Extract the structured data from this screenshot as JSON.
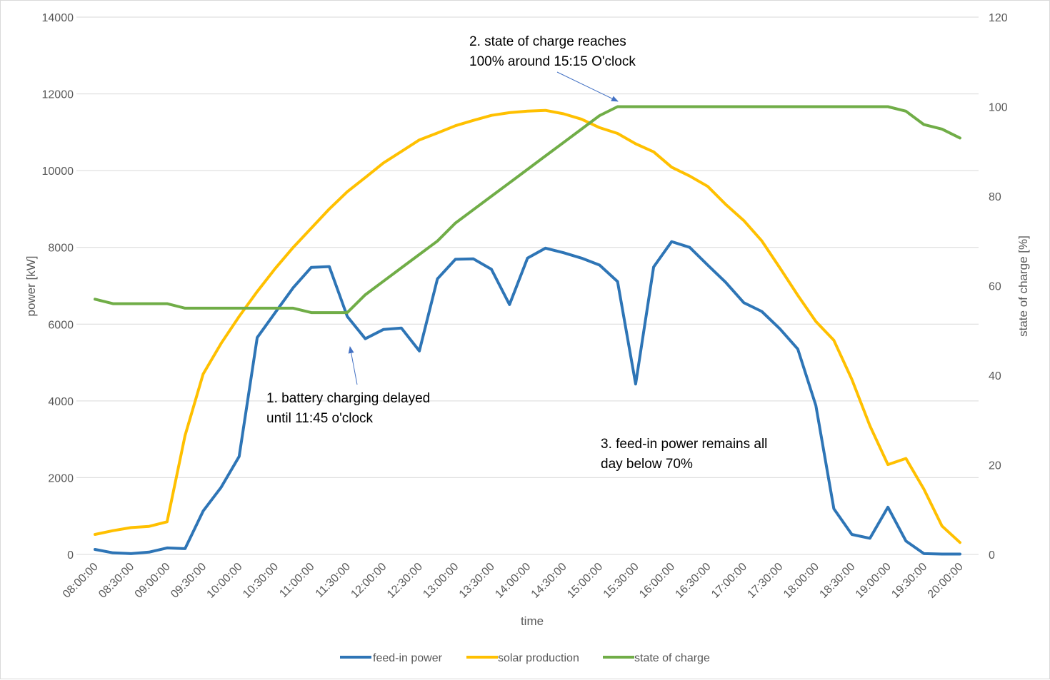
{
  "chart_data": {
    "type": "line",
    "title": "",
    "xlabel": "time",
    "ylabel": "power [kW]",
    "y2label": "state of charge [%]",
    "ylim": [
      0,
      14000
    ],
    "y_ticks": [
      0,
      2000,
      4000,
      6000,
      8000,
      10000,
      12000,
      14000
    ],
    "y2lim": [
      0,
      120
    ],
    "y2_ticks": [
      0,
      20,
      40,
      60,
      80,
      100,
      120
    ],
    "grid": true,
    "legend_position": "bottom",
    "x_tick_labels": [
      "08:00:00",
      "08:30:00",
      "09:00:00",
      "09:30:00",
      "10:00:00",
      "10:30:00",
      "11:00:00",
      "11:30:00",
      "12:00:00",
      "12:30:00",
      "13:00:00",
      "13:30:00",
      "14:00:00",
      "14:30:00",
      "15:00:00",
      "15:30:00",
      "16:00:00",
      "16:30:00",
      "17:00:00",
      "17:30:00",
      "18:00:00",
      "18:30:00",
      "19:00:00",
      "19:30:00",
      "20:00:00"
    ],
    "x": [
      "08:00",
      "08:15",
      "08:30",
      "08:45",
      "09:00",
      "09:15",
      "09:30",
      "09:45",
      "10:00",
      "10:15",
      "10:30",
      "10:45",
      "11:00",
      "11:15",
      "11:30",
      "11:45",
      "12:00",
      "12:15",
      "12:30",
      "12:45",
      "13:00",
      "13:15",
      "13:30",
      "13:45",
      "14:00",
      "14:15",
      "14:30",
      "14:45",
      "15:00",
      "15:15",
      "15:30",
      "15:45",
      "16:00",
      "16:15",
      "16:30",
      "16:45",
      "17:00",
      "17:15",
      "17:30",
      "17:45",
      "18:00",
      "18:15",
      "18:30",
      "18:45",
      "19:00",
      "19:15",
      "19:30",
      "19:45",
      "20:00"
    ],
    "series": [
      {
        "name": "feed-in power",
        "axis": "left",
        "color": "#2E75B6",
        "values": [
          130,
          40,
          20,
          60,
          170,
          150,
          1130,
          1750,
          2550,
          5650,
          6300,
          6950,
          7480,
          7500,
          6200,
          5620,
          5860,
          5900,
          5300,
          7180,
          7690,
          7700,
          7430,
          6510,
          7720,
          7980,
          7860,
          7720,
          7540,
          7110,
          4440,
          7490,
          8150,
          8000,
          7540,
          7090,
          6560,
          6330,
          5880,
          5350,
          3880,
          1190,
          520,
          420,
          1230,
          350,
          20,
          10,
          10
        ]
      },
      {
        "name": "solar production",
        "axis": "left",
        "color": "#FFC000",
        "values": [
          520,
          620,
          700,
          730,
          850,
          3100,
          4700,
          5500,
          6200,
          6850,
          7450,
          8000,
          8500,
          9000,
          9450,
          9820,
          10200,
          10500,
          10800,
          10980,
          11170,
          11310,
          11440,
          11510,
          11550,
          11570,
          11480,
          11340,
          11120,
          10970,
          10700,
          10490,
          10090,
          9860,
          9590,
          9120,
          8700,
          8170,
          7470,
          6750,
          6070,
          5580,
          4560,
          3350,
          2340,
          2500,
          1700,
          740,
          310
        ]
      },
      {
        "name": "state of charge",
        "axis": "right",
        "color": "#70AD47",
        "values": [
          57,
          56,
          56,
          56,
          56,
          55,
          55,
          55,
          55,
          55,
          55,
          55,
          54,
          54,
          54,
          58,
          61,
          64,
          67,
          70,
          74,
          77,
          80,
          83,
          86,
          89,
          92,
          95,
          98,
          100,
          100,
          100,
          100,
          100,
          100,
          100,
          100,
          100,
          100,
          100,
          100,
          100,
          100,
          100,
          100,
          99,
          96,
          95,
          93
        ]
      }
    ],
    "annotations": [
      {
        "lines": [
          "1. battery charging delayed",
          "until 11:45 o'clock"
        ],
        "arrow_to": {
          "x": "11:45",
          "y": 6000
        }
      },
      {
        "lines": [
          "2. state of charge reaches",
          "100% around 15:15 O'clock"
        ],
        "arrow_to": {
          "x": "15:15",
          "y": 11700
        }
      },
      {
        "lines": [
          "3. feed-in power remains all",
          "day below 70%"
        ]
      }
    ]
  }
}
